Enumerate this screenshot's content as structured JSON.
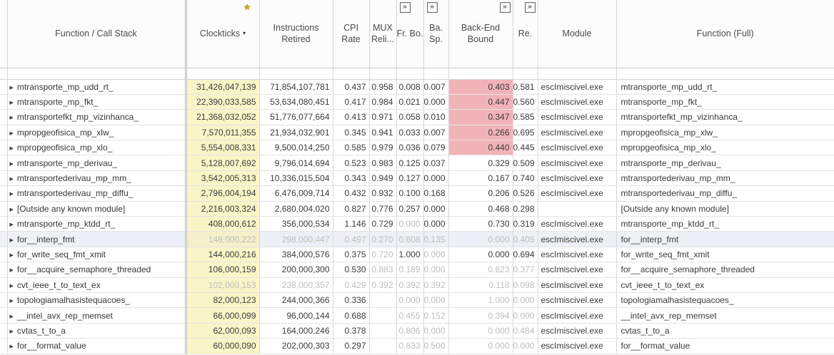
{
  "colors": {
    "sort_col_bg": "#faf5c8",
    "hotspot_pink": "#f2b3b8",
    "star_gold": "#c8a415",
    "dim_text": "#bdbdbd",
    "text": "#3b3b3b"
  },
  "icons": {
    "expand_triangle": "▶",
    "sort_desc": "▾",
    "star": "★",
    "expand_columns": "»"
  },
  "header": {
    "columns": {
      "function": "Function / Call Stack",
      "clockticks": "Clockticks",
      "instructions": "Instructions Retired",
      "cpi": "CPI Rate",
      "mux": "MUX Reli...",
      "fr": "Fr. Bo.",
      "ba": "Ba. Sp.",
      "beb": "Back-End Bound",
      "re": "Re.",
      "module": "Module",
      "full": "Function (Full)"
    }
  },
  "rows": [
    {
      "fn": "mtransporte_mp_udd_rt_",
      "clockticks": "31,426,047,139",
      "instr": "71,854,107,781",
      "cpi": "0.437",
      "mux": "0.958",
      "fr": "0.008",
      "ba": "0.007",
      "beb": "0.403",
      "re": "0.581",
      "module": "escImiscivel.exe",
      "full": "mtransporte_mp_udd_rt_",
      "beb_pink": true,
      "dim": []
    },
    {
      "fn": "mtransporte_mp_fkt_",
      "clockticks": "22,390,033,585",
      "instr": "53,634,080,451",
      "cpi": "0.417",
      "mux": "0.984",
      "fr": "0.021",
      "ba": "0.000",
      "beb": "0.447",
      "re": "0.560",
      "module": "escImiscivel.exe",
      "full": "mtransporte_mp_fkt_",
      "beb_pink": true,
      "dim": []
    },
    {
      "fn": "mtransportefkt_mp_vizinhanca_",
      "clockticks": "21,368,032,052",
      "instr": "51,776,077,664",
      "cpi": "0.413",
      "mux": "0.971",
      "fr": "0.058",
      "ba": "0.010",
      "beb": "0.347",
      "re": "0.585",
      "module": "escImiscivel.exe",
      "full": "mtransportefkt_mp_vizinhanca_",
      "beb_pink": true,
      "dim": []
    },
    {
      "fn": "mpropgeofisica_mp_xlw_",
      "clockticks": "7,570,011,355",
      "instr": "21,934,032,901",
      "cpi": "0.345",
      "mux": "0.941",
      "fr": "0.033",
      "ba": "0.007",
      "beb": "0.266",
      "re": "0.695",
      "module": "escImiscivel.exe",
      "full": "mpropgeofisica_mp_xlw_",
      "beb_pink": true,
      "dim": []
    },
    {
      "fn": "mpropgeofisica_mp_xlo_",
      "clockticks": "5,554,008,331",
      "instr": "9,500,014,250",
      "cpi": "0.585",
      "mux": "0.979",
      "fr": "0.036",
      "ba": "0.079",
      "beb": "0.440",
      "re": "0.445",
      "module": "escImiscivel.exe",
      "full": "mpropgeofisica_mp_xlo_",
      "beb_pink": true,
      "dim": []
    },
    {
      "fn": "mtransporte_mp_derivau_",
      "clockticks": "5,128,007,692",
      "instr": "9,796,014,694",
      "cpi": "0.523",
      "mux": "0.983",
      "fr": "0.125",
      "ba": "0.037",
      "beb": "0.329",
      "re": "0.509",
      "module": "escImiscivel.exe",
      "full": "mtransporte_mp_derivau_",
      "dim": []
    },
    {
      "fn": "mtransportederivau_mp_mm_",
      "clockticks": "3,542,005,313",
      "instr": "10,336,015,504",
      "cpi": "0.343",
      "mux": "0.949",
      "fr": "0.127",
      "ba": "0.000",
      "beb": "0.167",
      "re": "0.740",
      "module": "escImiscivel.exe",
      "full": "mtransportederivau_mp_mm_",
      "dim": []
    },
    {
      "fn": "mtransportederivau_mp_diffu_",
      "clockticks": "2,796,004,194",
      "instr": "6,476,009,714",
      "cpi": "0.432",
      "mux": "0.932",
      "fr": "0.100",
      "ba": "0.168",
      "beb": "0.206",
      "re": "0.526",
      "module": "escImiscivel.exe",
      "full": "mtransportederivau_mp_diffu_",
      "dim": []
    },
    {
      "fn": "[Outside any known module]",
      "clockticks": "2,216,003,324",
      "instr": "2,680,004,020",
      "cpi": "0.827",
      "mux": "0.776",
      "fr": "0.257",
      "ba": "0.000",
      "beb": "0.468",
      "re": "0.298",
      "module": "",
      "full": "[Outside any known module]",
      "dim": []
    },
    {
      "fn": "mtransporte_mp_ktdd_rt_",
      "clockticks": "408,000,612",
      "instr": "356,000,534",
      "cpi": "1.146",
      "mux": "0.729",
      "fr": "0.000",
      "ba": "0.000",
      "beb": "0.730",
      "re": "0.319",
      "module": "escImiscivel.exe",
      "full": "mtransporte_mp_ktdd_rt_",
      "dim": [
        "fr"
      ]
    },
    {
      "fn": "for__interp_fmt",
      "clockticks": "148,000,222",
      "instr": "298,000,447",
      "cpi": "0.497",
      "mux": "0.270",
      "fr": "0.608",
      "ba": "0.135",
      "beb": "0.000",
      "re": "0.405",
      "module": "escImiscivel.exe",
      "full": "for__interp_fmt",
      "selected": true,
      "dim": [
        "clockticks",
        "instr",
        "cpi",
        "mux",
        "fr",
        "ba",
        "beb",
        "re"
      ]
    },
    {
      "fn": "for_write_seq_fmt_xmit",
      "clockticks": "144,000,216",
      "instr": "384,000,576",
      "cpi": "0.375",
      "mux": "0.720",
      "fr": "1.000",
      "ba": "0.000",
      "beb": "0.000",
      "re": "0.694",
      "module": "escImiscivel.exe",
      "full": "for_write_seq_fmt_xmit",
      "dim": [
        "mux",
        "ba"
      ]
    },
    {
      "fn": "for__acquire_semaphore_threaded",
      "clockticks": "106,000,159",
      "instr": "200,000,300",
      "cpi": "0.530",
      "mux": "0.883",
      "fr": "0.189",
      "ba": "0.000",
      "beb": "0.623",
      "re": "0.377",
      "module": "escImiscivel.exe",
      "full": "for__acquire_semaphore_threaded",
      "dim": [
        "mux",
        "fr",
        "ba",
        "beb",
        "re"
      ]
    },
    {
      "fn": "cvt_ieee_t_to_text_ex",
      "clockticks": "102,000,153",
      "instr": "238,000,357",
      "cpi": "0.429",
      "mux": "0.392",
      "fr": "0.392",
      "ba": "0.392",
      "beb": "0.118",
      "re": "0.098",
      "module": "escImiscivel.exe",
      "full": "cvt_ieee_t_to_text_ex",
      "dim": [
        "clockticks",
        "instr",
        "cpi",
        "mux",
        "fr",
        "ba",
        "beb",
        "re"
      ]
    },
    {
      "fn": "topologiamalhasistequacoes_",
      "clockticks": "82,000,123",
      "instr": "244,000,366",
      "cpi": "0.336",
      "mux": "",
      "fr": "0.000",
      "ba": "0.000",
      "beb": "1.000",
      "re": "0.000",
      "module": "escImiscivel.exe",
      "full": "topologiamalhasistequacoes_",
      "dim": [
        "fr",
        "ba",
        "beb",
        "re"
      ]
    },
    {
      "fn": "__intel_avx_rep_memset",
      "clockticks": "66,000,099",
      "instr": "96,000,144",
      "cpi": "0.688",
      "mux": "",
      "fr": "0.455",
      "ba": "0.152",
      "beb": "0.394",
      "re": "0.000",
      "module": "escImiscivel.exe",
      "full": "__intel_avx_rep_memset",
      "dim": [
        "fr",
        "ba",
        "beb",
        "re"
      ]
    },
    {
      "fn": "cvtas_t_to_a",
      "clockticks": "62,000,093",
      "instr": "164,000,246",
      "cpi": "0.378",
      "mux": "",
      "fr": "0.806",
      "ba": "0.000",
      "beb": "0.000",
      "re": "0.484",
      "module": "escImiscivel.exe",
      "full": "cvtas_t_to_a",
      "dim": [
        "fr",
        "ba",
        "beb",
        "re"
      ]
    },
    {
      "fn": "for__format_value",
      "clockticks": "60,000,090",
      "instr": "202,000,303",
      "cpi": "0.297",
      "mux": "",
      "fr": "0.833",
      "ba": "0.500",
      "beb": "0.000",
      "re": "0.000",
      "module": "escImiscivel.exe",
      "full": "for__format_value",
      "dim": [
        "fr",
        "ba",
        "beb",
        "re"
      ]
    }
  ]
}
